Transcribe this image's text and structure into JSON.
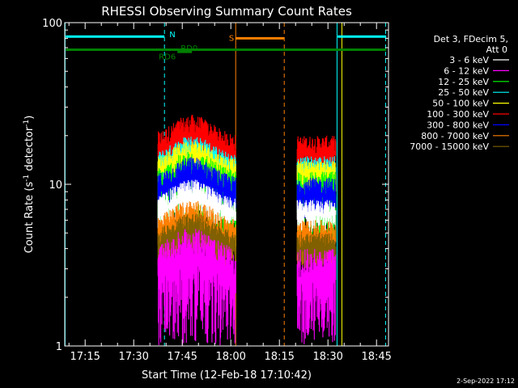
{
  "chart_data": {
    "type": "line",
    "title": "RHESSI Observing Summary Count Rates",
    "xlabel": "Start Time (12-Feb-18 17:10:42)",
    "ylabel": "Count Rate (s",
    "ylabel_sup": "-1",
    "ylabel_tail": " detector",
    "ylabel_close": ")",
    "xlim_min": [
      0,
      100
    ],
    "xlim_minutes_from_1710": [
      0,
      98
    ],
    "ylim": [
      1,
      100
    ],
    "yscale": "log",
    "x_ticks": [
      {
        "label": "17:15",
        "minute": 5
      },
      {
        "label": "17:30",
        "minute": 20
      },
      {
        "label": "17:45",
        "minute": 35
      },
      {
        "label": "18:00",
        "minute": 50
      },
      {
        "label": "18:15",
        "minute": 65
      },
      {
        "label": "18:30",
        "minute": 80
      },
      {
        "label": "18:45",
        "minute": 95
      }
    ],
    "y_ticks": [
      {
        "label": "1",
        "value": 1
      },
      {
        "label": "10",
        "value": 10
      },
      {
        "label": "100",
        "value": 100
      }
    ],
    "legend_header": [
      "Det 3, FDecim 5,",
      "Att 0"
    ],
    "series": [
      {
        "name": "3 - 6 keV",
        "color": "#ffffff",
        "lo": 5.0,
        "hi": 8.0
      },
      {
        "name": "6 - 12 keV",
        "color": "#ff00ff",
        "lo": 1.2,
        "hi": 4.0
      },
      {
        "name": "12 - 25 keV",
        "color": "#00ff00",
        "lo": 3.5,
        "hi": 12.0
      },
      {
        "name": "25 - 50 keV",
        "color": "#00ffff",
        "lo": 9.0,
        "hi": 15.0
      },
      {
        "name": "50 - 100 keV",
        "color": "#ffff00",
        "lo": 9.0,
        "hi": 14.0
      },
      {
        "name": "100 - 300 keV",
        "color": "#ff0000",
        "lo": 11.0,
        "hi": 20.0
      },
      {
        "name": "300 - 800 keV",
        "color": "#0000ff",
        "lo": 6.0,
        "hi": 11.0
      },
      {
        "name": "800 - 7000 keV",
        "color": "#ff8000",
        "lo": 3.0,
        "hi": 6.0
      },
      {
        "name": "7000 - 15000 keV",
        "color": "#806000",
        "lo": 3.0,
        "hi": 5.0
      }
    ],
    "data_intervals_minutes": [
      [
        27.5,
        51.5
      ],
      [
        70.5,
        82.5
      ]
    ],
    "flags": [
      {
        "label": "N",
        "color": "#00ffff",
        "y": 82,
        "segments": [
          [
            -1,
            29.5
          ],
          [
            83,
            98
          ]
        ]
      },
      {
        "label": "S",
        "color": "#ff8000",
        "y": 80,
        "segments": [
          [
            51.5,
            66.5
          ]
        ]
      },
      {
        "label": "RD6",
        "color": "#008000",
        "y": 68,
        "segments": [
          [
            -1,
            98
          ]
        ]
      },
      {
        "label": "RD0",
        "color": "#008000",
        "y": 66,
        "segments": [
          [
            33.5,
            38
          ]
        ]
      }
    ],
    "vlines": [
      {
        "minute": -1.2,
        "color": "#00ffff",
        "style": "solid"
      },
      {
        "minute": 29.5,
        "color": "#00ffff",
        "style": "dashed"
      },
      {
        "minute": 51.5,
        "color": "#ff8000",
        "style": "solid"
      },
      {
        "minute": 66.5,
        "color": "#ff8000",
        "style": "dashed"
      },
      {
        "minute": 82.8,
        "color": "#00ffff",
        "style": "solid"
      },
      {
        "minute": 84.3,
        "color": "#ffff00",
        "style": "solid"
      },
      {
        "minute": 97.8,
        "color": "#00ffff",
        "style": "dashed"
      }
    ]
  },
  "footer": {
    "date": "2-Sep-2022 17:12"
  }
}
